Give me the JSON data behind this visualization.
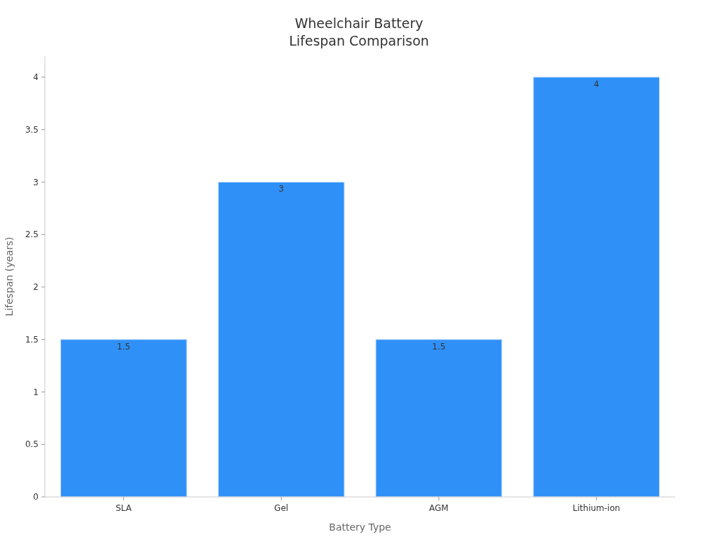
{
  "chart_data": {
    "type": "bar",
    "title": "Wheelchair Battery\nLifespan Comparison",
    "xlabel": "Battery Type",
    "ylabel": "Lifespan (years)",
    "categories": [
      "SLA",
      "Gel",
      "AGM",
      "Lithium-ion"
    ],
    "values": [
      1.5,
      3,
      1.5,
      4
    ],
    "color": "#2f91f8",
    "ylim": [
      0,
      4.2
    ],
    "yticks": [
      0,
      0.5,
      1,
      1.5,
      2,
      2.5,
      3,
      3.5,
      4
    ],
    "grid": false,
    "data_labels": true
  }
}
